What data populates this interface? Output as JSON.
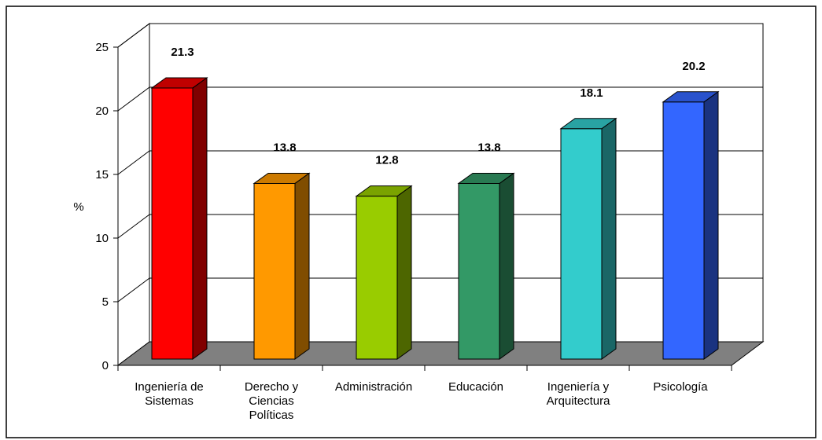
{
  "chart_data": {
    "type": "bar",
    "title": "",
    "xlabel": "",
    "ylabel": "%",
    "ylim": [
      0,
      25
    ],
    "yticks": [
      0,
      5,
      10,
      15,
      20,
      25
    ],
    "grid": true,
    "legend": "none",
    "categories": [
      [
        "Ingeniería de",
        "Sistemas"
      ],
      [
        "Derecho y",
        "Ciencias",
        "Políticas"
      ],
      [
        "Administración"
      ],
      [
        "Educación"
      ],
      [
        "Ingeniería y",
        "Arquitectura"
      ],
      [
        "Psicología"
      ]
    ],
    "values": [
      21.3,
      13.8,
      12.8,
      13.8,
      18.1,
      20.2
    ],
    "data_labels": [
      "21.3",
      "13.8",
      "12.8",
      "13.8",
      "18.1",
      "20.2"
    ],
    "colors": {
      "front": [
        "#ff0000",
        "#ff9900",
        "#99cc00",
        "#339966",
        "#33cccc",
        "#3366ff"
      ],
      "side": [
        "#800000",
        "#804d00",
        "#4d6600",
        "#1a4d33",
        "#1a6666",
        "#1a3380"
      ],
      "top": [
        "#c00000",
        "#cc7a00",
        "#7aa300",
        "#297a52",
        "#29a3a3",
        "#2952cc"
      ],
      "floor": "#808080",
      "grid": "#000000"
    }
  }
}
